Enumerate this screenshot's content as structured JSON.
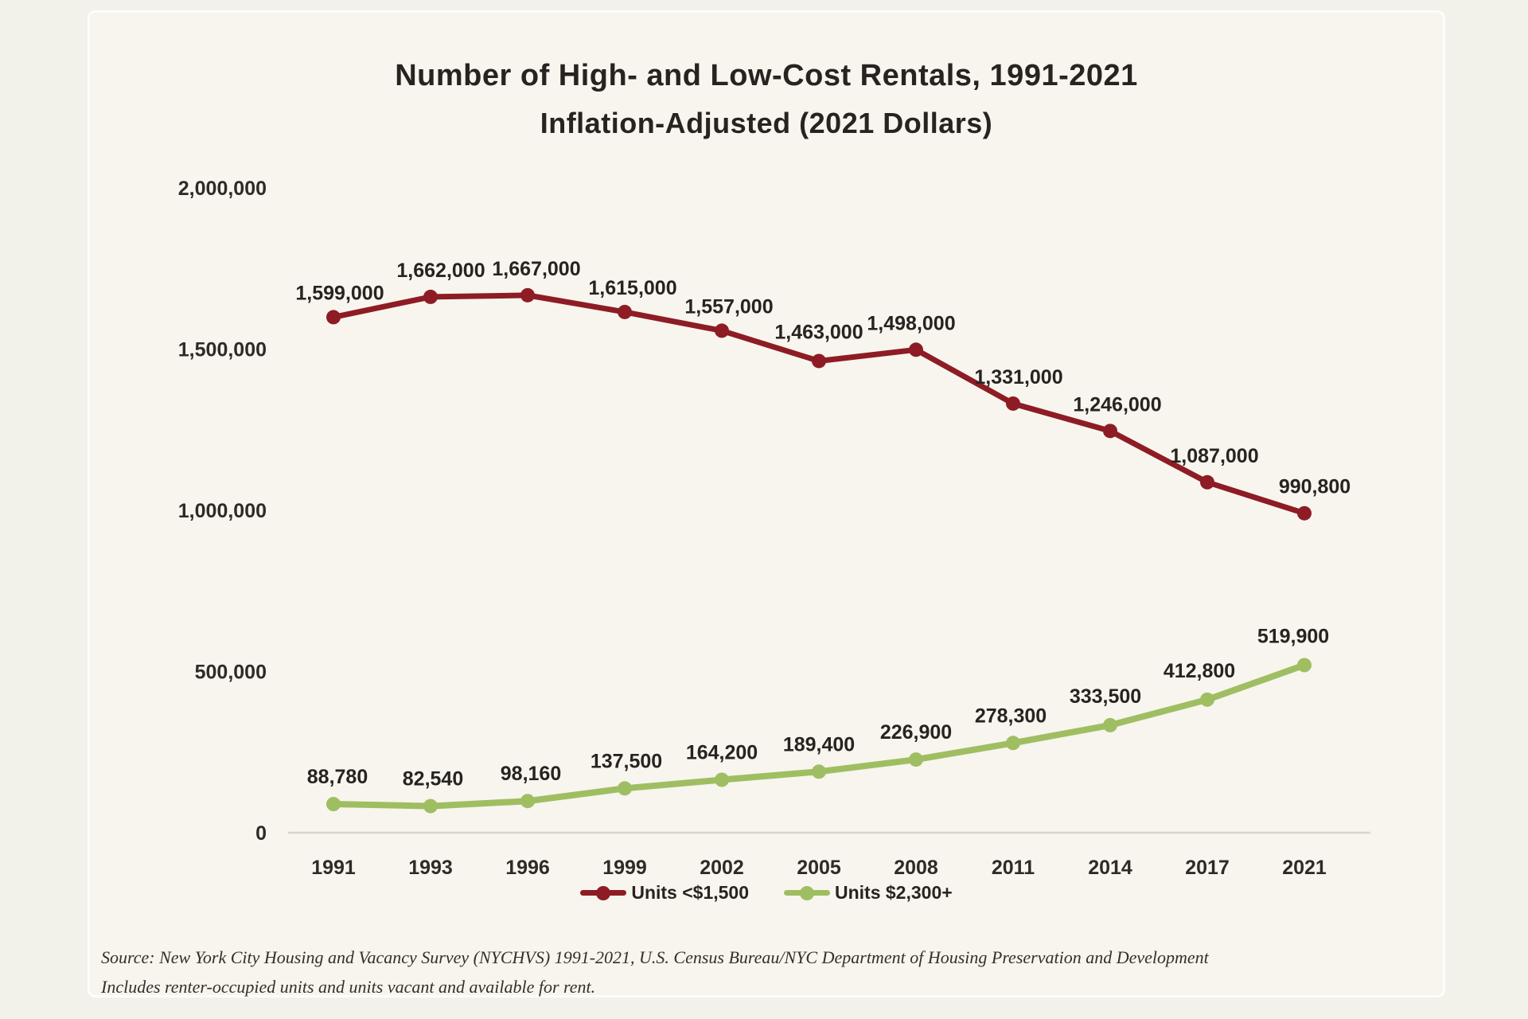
{
  "chart_data": {
    "type": "line",
    "title": "Number of High- and Low-Cost Rentals, 1991-2021",
    "subtitle": "Inflation-Adjusted (2021 Dollars)",
    "categories": [
      "1991",
      "1993",
      "1996",
      "1999",
      "2002",
      "2005",
      "2008",
      "2011",
      "2014",
      "2017",
      "2021"
    ],
    "series": [
      {
        "name": "Units <$1,500",
        "color": "#8d1c25",
        "values": [
          1599000,
          1662000,
          1667000,
          1615000,
          1557000,
          1463000,
          1498000,
          1331000,
          1246000,
          1087000,
          990800
        ],
        "labels": [
          "1,599,000",
          "1,662,000",
          "1,667,000",
          "1,615,000",
          "1,557,000",
          "1,463,000",
          "1,498,000",
          "1,331,000",
          "1,246,000",
          "1,087,000",
          "990,800"
        ]
      },
      {
        "name": "Units $2,300+",
        "color": "#9fbe62",
        "values": [
          88780,
          82540,
          98160,
          137500,
          164200,
          189400,
          226900,
          278300,
          333500,
          412800,
          519900
        ],
        "labels": [
          "88,780",
          "82,540",
          "98,160",
          "137,500",
          "164,200",
          "189,400",
          "226,900",
          "278,300",
          "333,500",
          "412,800",
          "519,900"
        ]
      }
    ],
    "y_axis": {
      "range": [
        0,
        2000000
      ],
      "ticks": [
        0,
        500000,
        1000000,
        1500000,
        2000000
      ],
      "tick_labels": [
        "0",
        "500,000",
        "1,000,000",
        "1,500,000",
        "2,000,000"
      ]
    },
    "grid": "off",
    "legend_position": "bottom"
  },
  "source": {
    "line1": "Source: New York City Housing and Vacancy Survey (NYCHVS) 1991-2021, U.S. Census Bureau/NYC Department of Housing Preservation and Development",
    "line2": "Includes renter-occupied units and units vacant and available for rent."
  }
}
